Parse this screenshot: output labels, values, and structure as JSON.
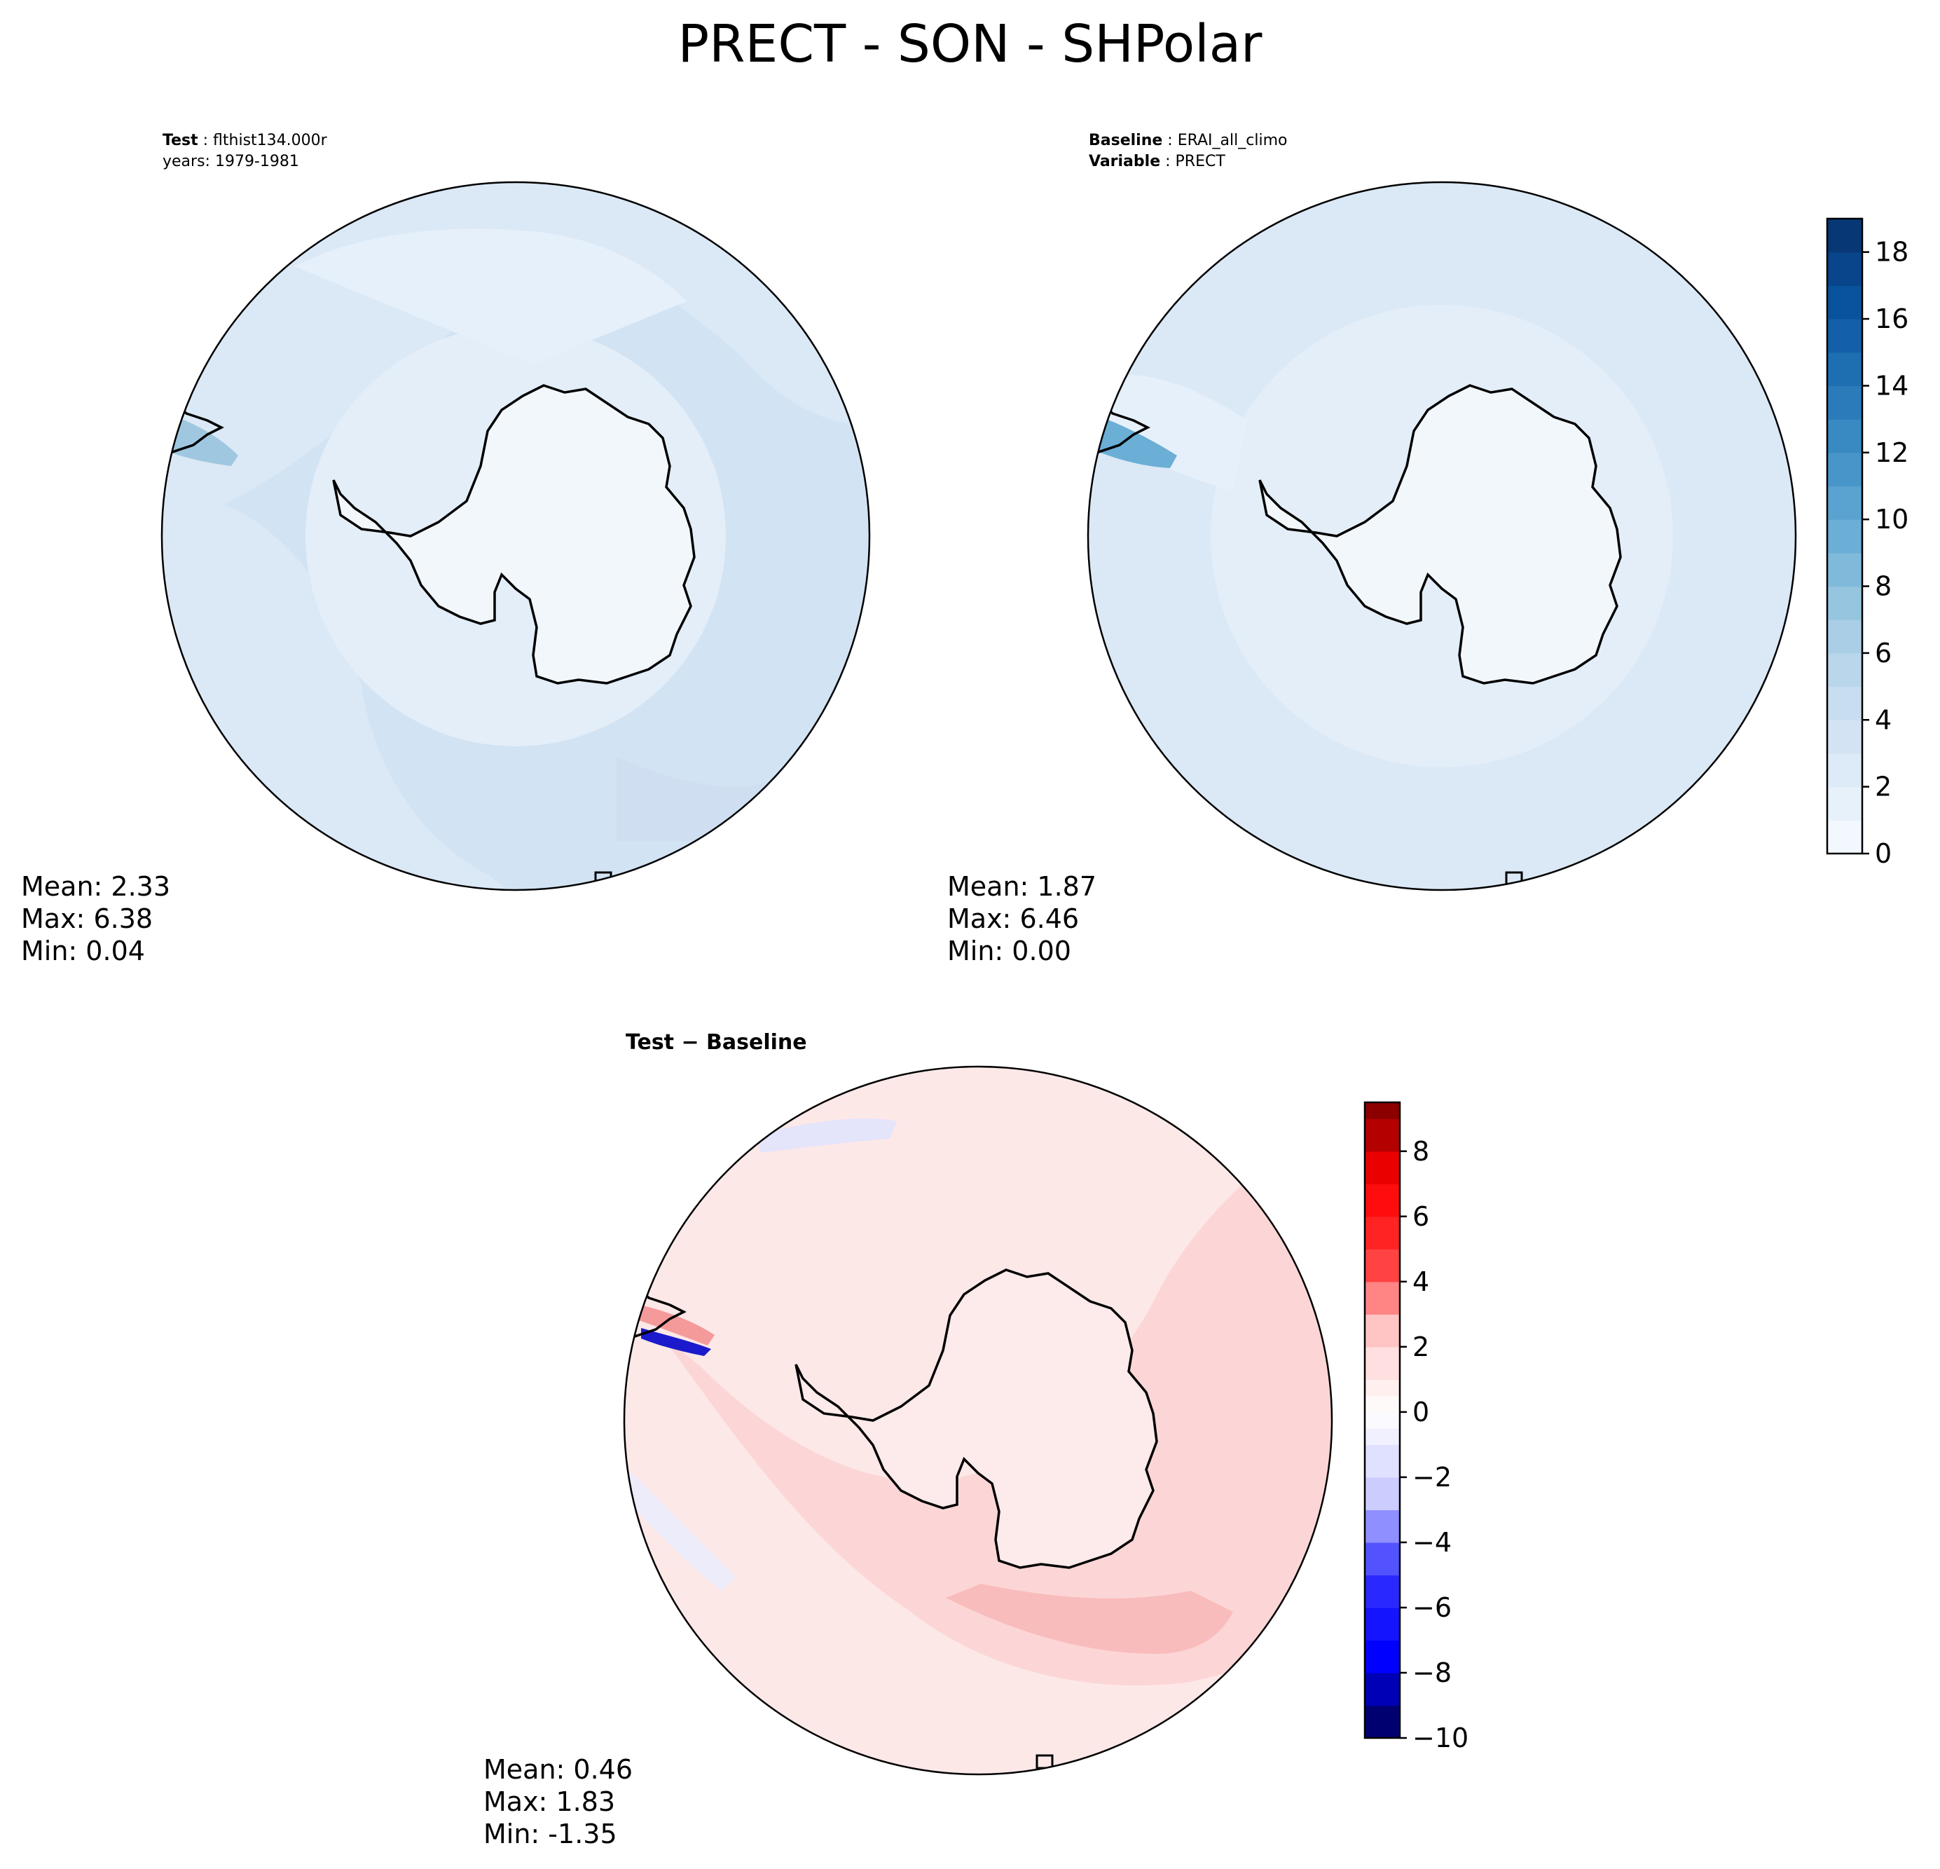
{
  "figure": {
    "title": "PRECT - SON - SHPolar"
  },
  "panels": {
    "test": {
      "label_key": "Test",
      "label_value": "flthist134.000r",
      "years": "years: 1979-1981",
      "mean": "Mean:  2.33",
      "max": "Max:  6.38",
      "min": "Min:  0.04"
    },
    "baseline": {
      "label_key": "Baseline",
      "label_value": "ERAI_all_climo",
      "var_key": "Variable",
      "var_value": "PRECT",
      "mean": "Mean:  1.87",
      "max": "Max:  6.46",
      "min": "Min:  0.00"
    },
    "diff": {
      "title": "Test − Baseline",
      "mean": "Mean:  0.46",
      "max": "Max:  1.83",
      "min": "Min: -1.35"
    }
  },
  "colors": {
    "blues_low": "#f7fbff",
    "blues_high": "#08306b",
    "diff_neg": "#00004c",
    "diff_zero": "#ffffff",
    "diff_pos": "#7f0000",
    "coast": "#000000"
  },
  "chart_data": [
    {
      "type": "heatmap",
      "name": "test",
      "projection": "south-polar-stereographic",
      "variable": "PRECT",
      "season": "SON",
      "stats": {
        "mean": 2.33,
        "max": 6.38,
        "min": 0.04
      },
      "colorbar": {
        "vmin": 0,
        "vmax": 19,
        "levels": [
          0,
          1,
          2,
          3,
          4,
          5,
          6,
          7,
          8,
          9,
          10,
          11,
          12,
          13,
          14,
          15,
          16,
          17,
          18,
          19
        ]
      }
    },
    {
      "type": "heatmap",
      "name": "baseline",
      "projection": "south-polar-stereographic",
      "variable": "PRECT",
      "season": "SON",
      "stats": {
        "mean": 1.87,
        "max": 6.46,
        "min": 0.0
      },
      "colorbar": {
        "vmin": 0,
        "vmax": 19,
        "levels": [
          0,
          1,
          2,
          3,
          4,
          5,
          6,
          7,
          8,
          9,
          10,
          11,
          12,
          13,
          14,
          15,
          16,
          17,
          18,
          19
        ],
        "ticks": [
          0,
          2,
          4,
          6,
          8,
          10,
          12,
          14,
          16,
          18
        ],
        "tick_labels": [
          "0",
          "2",
          "4",
          "6",
          "8",
          "10",
          "12",
          "14",
          "16",
          "18"
        ]
      }
    },
    {
      "type": "heatmap",
      "name": "diff",
      "projection": "south-polar-stereographic",
      "title": "Test − Baseline",
      "stats": {
        "mean": 0.46,
        "max": 1.83,
        "min": -1.35
      },
      "colorbar": {
        "vmin": -10,
        "vmax": 9.5,
        "levels": [
          -10,
          -9,
          -8,
          -7,
          -6,
          -5,
          -4,
          -3,
          -2,
          -1,
          -0.5,
          0,
          0.5,
          1,
          2,
          3,
          4,
          5,
          6,
          7,
          8,
          9
        ],
        "ticks": [
          -10,
          -8,
          -6,
          -4,
          -2,
          0,
          2,
          4,
          6,
          8
        ],
        "tick_labels": [
          "−10",
          "−8",
          "−6",
          "−4",
          "−2",
          "0",
          "2",
          "4",
          "6",
          "8"
        ]
      }
    }
  ]
}
